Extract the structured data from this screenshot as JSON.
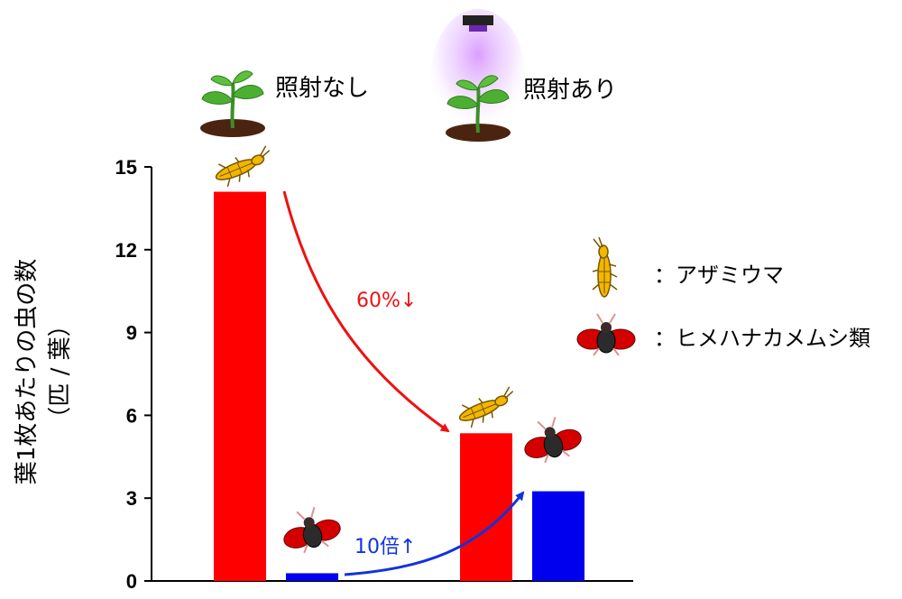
{
  "chart_data": {
    "type": "bar",
    "ylabel": "葉1枚あたりの虫の数",
    "ylabel_unit": "（匹 / 葉）",
    "ylim": [
      0,
      15
    ],
    "yticks": [
      "0",
      "3",
      "6",
      "9",
      "12",
      "15"
    ],
    "categories": [
      "照射なし",
      "照射あり"
    ],
    "series": [
      {
        "name": "アザミウマ",
        "values": [
          14.1,
          5.35
        ],
        "color": "#ff0000",
        "icon": "thrips-icon"
      },
      {
        "name": "ヒメハナカメムシ類",
        "values": [
          0.28,
          3.25
        ],
        "color": "#0000ee",
        "icon": "bug-icon"
      }
    ],
    "annotations": [
      {
        "text": "60%↓",
        "color": "#ee1111",
        "series": "アザミウマ"
      },
      {
        "text": "10倍↑",
        "color": "#1133dd",
        "series": "ヒメハナカメムシ類"
      }
    ],
    "grid": false
  },
  "headers": {
    "no_irradiation": "照射なし",
    "irradiation": "照射あり"
  },
  "legend": [
    {
      "label": "：アザミウマ",
      "icon": "thrips-icon"
    },
    {
      "label": "：ヒメハナカメムシ類",
      "icon": "bug-icon"
    }
  ]
}
